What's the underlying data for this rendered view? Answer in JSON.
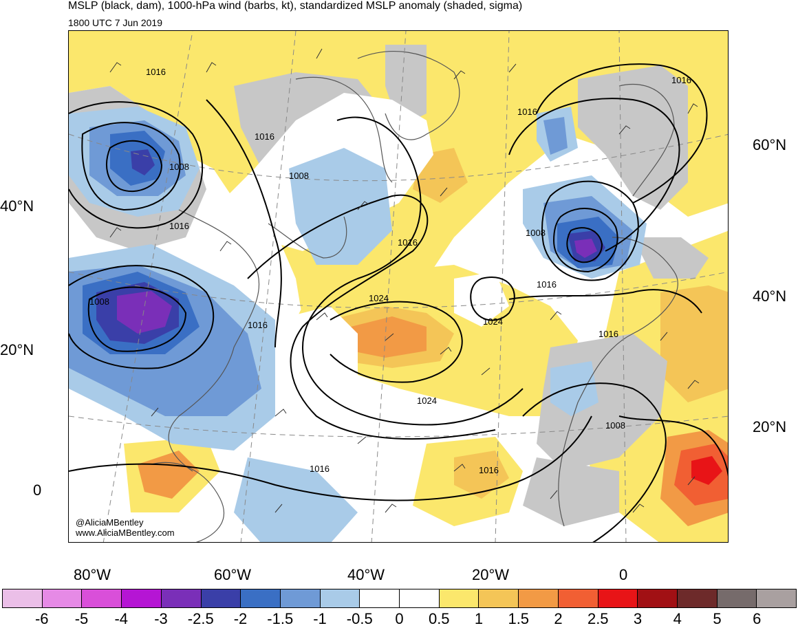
{
  "header": {
    "title": "MSLP (black, dam), 1000-hPa wind (barbs, kt), standardized MSLP anomaly (shaded, sigma)",
    "valid_time": "1800 UTC 7 Jun 2019"
  },
  "axes": {
    "left_lat": [
      "40°N",
      "20°N",
      "0"
    ],
    "right_lat": [
      "60°N",
      "40°N",
      "20°N"
    ],
    "bottom_lon": [
      "80°W",
      "60°W",
      "40°W",
      "20°W",
      "0"
    ]
  },
  "isobars": [
    "1016",
    "1008",
    "1016",
    "1008",
    "1016",
    "1008",
    "1016",
    "1024",
    "1016",
    "1016",
    "1024",
    "1016",
    "1024",
    "1008",
    "1016",
    "1016",
    "1016"
  ],
  "credit": {
    "handle": "@AliciaMBentley",
    "site": "www.AliciaMBentley.com"
  },
  "colorbar": {
    "labels": [
      "-6",
      "-5",
      "-4",
      "-3",
      "-2.5",
      "-2",
      "-1.5",
      "-1",
      "-0.5",
      "0",
      "0.5",
      "1",
      "1.5",
      "2",
      "2.5",
      "3",
      "4",
      "5",
      "6"
    ],
    "colors": [
      "#ebbfe8",
      "#e68ae6",
      "#d94fd9",
      "#b515d4",
      "#7a2fb8",
      "#3a3fa8",
      "#3a6fc4",
      "#6f9ad6",
      "#a9cbe8",
      "#ffffff",
      "#ffffff",
      "#fbe76c",
      "#f4c557",
      "#f29a45",
      "#f15f33",
      "#e81417",
      "#a11014",
      "#6d2a2a",
      "#766b6b",
      "#a9a0a0"
    ]
  }
}
